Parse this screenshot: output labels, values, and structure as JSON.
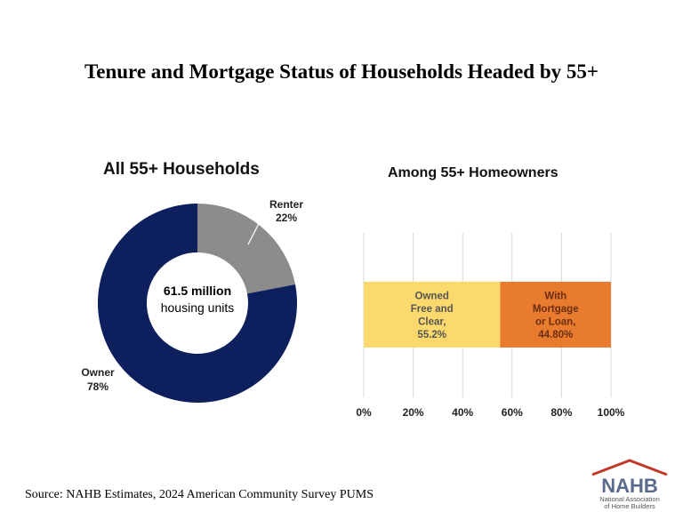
{
  "title": "Tenure and Mortgage Status of Households Headed by 55+",
  "source": "Source: NAHB Estimates, 2024 American Community Survey PUMS",
  "logo": {
    "name": "NAHB",
    "tagline_line1": "National Association",
    "tagline_line2": "of Home Builders",
    "color_main": "#5b6b8c",
    "color_accent": "#c0392b"
  },
  "chart_data": [
    {
      "type": "pie",
      "title": "All 55+ Households",
      "center_label_line1": "61.5 million",
      "center_label_line2": "housing units",
      "slices": [
        {
          "name": "Renter",
          "value": 22,
          "label": "22%",
          "color": "#8c8c8c"
        },
        {
          "name": "Owner",
          "value": 78,
          "label": "78%",
          "color": "#0d1f5c"
        }
      ]
    },
    {
      "type": "bar",
      "orientation": "horizontal",
      "stacked": true,
      "title": "Among 55+ Homeowners",
      "xlim": [
        0,
        100
      ],
      "xticks": [
        "0%",
        "20%",
        "40%",
        "60%",
        "80%",
        "100%"
      ],
      "grid": true,
      "segments": [
        {
          "label_lines": [
            "Owned",
            "Free and",
            "Clear,",
            "55.2%"
          ],
          "value": 55.2,
          "color": "#fcd96c"
        },
        {
          "label_lines": [
            "With",
            "Mortgage",
            "or Loan,",
            "44.80%"
          ],
          "value": 44.8,
          "color": "#e87b2e"
        }
      ]
    }
  ]
}
